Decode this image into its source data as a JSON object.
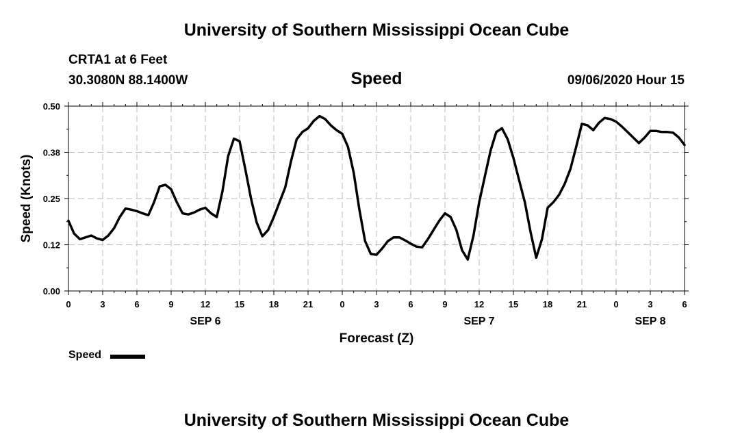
{
  "header": {
    "title": "University of Southern Mississippi Ocean Cube",
    "station": "CRTA1 at 6 Feet",
    "coords": "30.3080N 88.1400W",
    "datetime": "09/06/2020 Hour 15"
  },
  "footer": {
    "title": "University of Southern Mississippi Ocean Cube"
  },
  "colors": {
    "line": "#000000",
    "grid": "#bbbbbb",
    "axis": "#000000",
    "background": "#ffffff"
  },
  "chart_data": {
    "type": "line",
    "title": "Speed",
    "xlabel": "Forecast (Z)",
    "ylabel": "Speed (Knots)",
    "ylim": [
      0,
      0.5
    ],
    "xlim": [
      0,
      54
    ],
    "yticks": [
      "0.00",
      "0.12",
      "0.25",
      "0.38",
      "0.50"
    ],
    "ytick_values": [
      0,
      0.125,
      0.25,
      0.375,
      0.5
    ],
    "xticks": [
      0,
      3,
      6,
      9,
      12,
      15,
      18,
      21,
      24,
      27,
      30,
      33,
      36,
      39,
      42,
      45,
      48,
      51,
      54
    ],
    "xtick_labels": [
      "0",
      "3",
      "6",
      "9",
      "12",
      "15",
      "18",
      "21",
      "0",
      "3",
      "6",
      "9",
      "12",
      "15",
      "18",
      "21",
      "0",
      "3",
      "6"
    ],
    "day_labels": [
      {
        "label": "SEP 6",
        "hour": 12
      },
      {
        "label": "SEP 7",
        "hour": 36
      },
      {
        "label": "SEP 8",
        "hour": 51
      }
    ],
    "grid": true,
    "legend": {
      "position": "bottom-left",
      "entries": [
        "Speed"
      ]
    },
    "series": [
      {
        "name": "Speed",
        "x": [
          0,
          0.5,
          1,
          1.5,
          2,
          2.5,
          3,
          3.5,
          4,
          4.5,
          5,
          5.5,
          6,
          6.5,
          7,
          7.5,
          8,
          8.5,
          9,
          9.5,
          10,
          10.5,
          11,
          11.5,
          12,
          12.5,
          13,
          13.5,
          14,
          14.5,
          15,
          15.5,
          16,
          16.5,
          17,
          17.5,
          18,
          18.5,
          19,
          19.5,
          20,
          20.5,
          21,
          21.5,
          22,
          22.5,
          23,
          23.5,
          24,
          24.5,
          25,
          25.5,
          26,
          26.5,
          27,
          27.5,
          28,
          28.5,
          29,
          29.5,
          30,
          30.5,
          31,
          31.5,
          32,
          32.5,
          33,
          33.5,
          34,
          34.5,
          35,
          35.5,
          36,
          36.5,
          37,
          37.5,
          38,
          38.5,
          39,
          39.5,
          40,
          40.5,
          41,
          41.5,
          42,
          42.5,
          43,
          43.5,
          44,
          44.5,
          45,
          45.5,
          46,
          46.5,
          47,
          47.5,
          48,
          48.5,
          49,
          49.5,
          50,
          50.5,
          51,
          51.5,
          52,
          52.5,
          53,
          53.5,
          54
        ],
        "values": [
          0.19,
          0.155,
          0.14,
          0.145,
          0.15,
          0.142,
          0.138,
          0.15,
          0.17,
          0.2,
          0.223,
          0.22,
          0.216,
          0.21,
          0.205,
          0.24,
          0.283,
          0.287,
          0.275,
          0.24,
          0.21,
          0.207,
          0.212,
          0.22,
          0.225,
          0.21,
          0.2,
          0.27,
          0.365,
          0.412,
          0.405,
          0.33,
          0.25,
          0.185,
          0.148,
          0.165,
          0.2,
          0.24,
          0.28,
          0.35,
          0.41,
          0.43,
          0.44,
          0.46,
          0.473,
          0.465,
          0.448,
          0.435,
          0.425,
          0.39,
          0.32,
          0.22,
          0.135,
          0.1,
          0.098,
          0.115,
          0.135,
          0.145,
          0.145,
          0.137,
          0.128,
          0.12,
          0.118,
          0.14,
          0.165,
          0.19,
          0.21,
          0.2,
          0.165,
          0.11,
          0.085,
          0.15,
          0.24,
          0.31,
          0.38,
          0.43,
          0.44,
          0.41,
          0.36,
          0.3,
          0.24,
          0.16,
          0.09,
          0.14,
          0.225,
          0.24,
          0.26,
          0.29,
          0.33,
          0.39,
          0.452,
          0.448,
          0.435,
          0.455,
          0.468,
          0.465,
          0.458,
          0.445,
          0.43,
          0.415,
          0.4,
          0.415,
          0.433,
          0.433,
          0.43,
          0.43,
          0.428,
          0.415,
          0.395
        ]
      }
    ]
  }
}
